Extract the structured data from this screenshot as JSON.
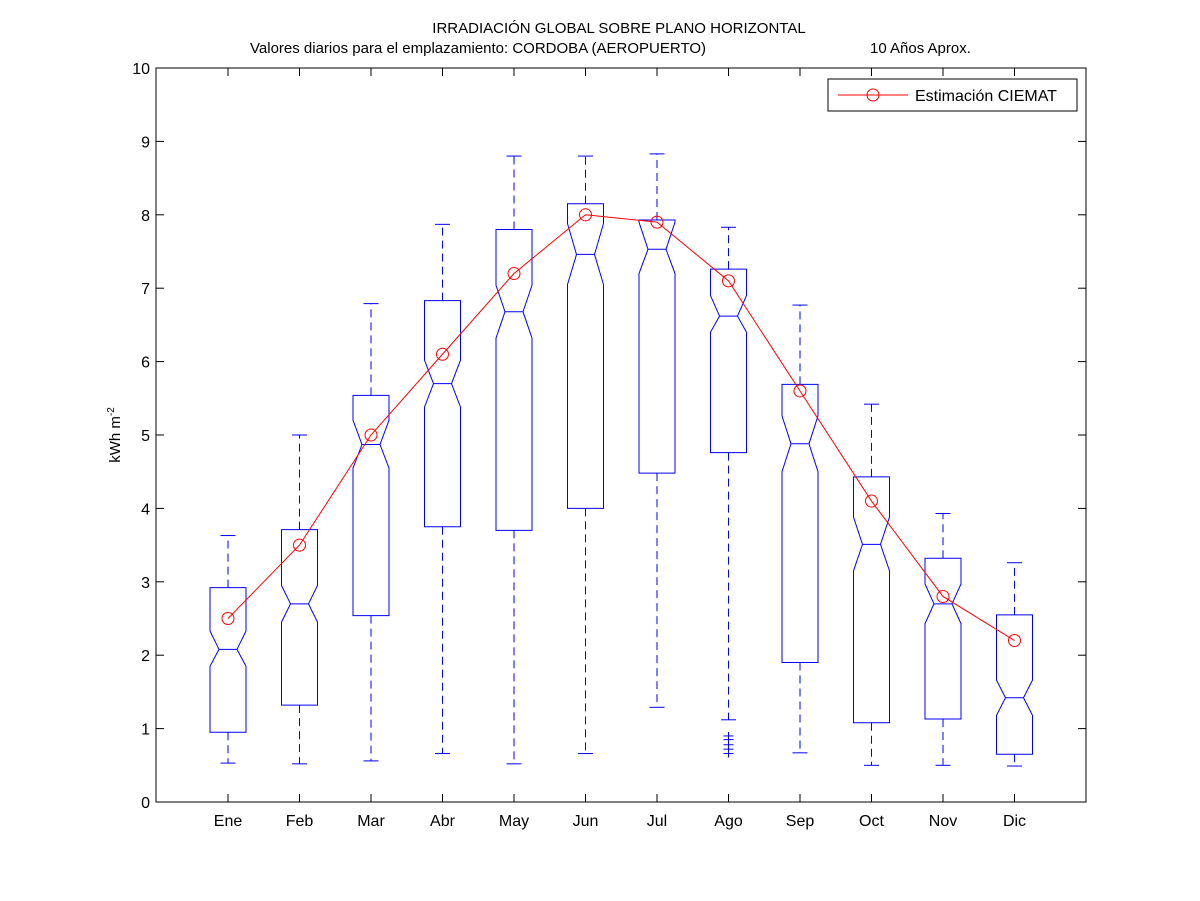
{
  "chart_data": {
    "type": "box",
    "title": "IRRADIACIÓN GLOBAL SOBRE PLANO HORIZONTAL",
    "subtitle_left": "Valores diarios para el emplazamiento:  CORDOBA (AEROPUERTO)",
    "subtitle_right": "10 Años Aprox.",
    "ylabel": "kWh m",
    "ylabel_sup": "-2",
    "ylim": [
      0,
      10
    ],
    "yticks": [
      "0",
      "1",
      "2",
      "3",
      "4",
      "5",
      "6",
      "7",
      "8",
      "9",
      "10"
    ],
    "grid": false,
    "legend_position": "top-right",
    "categories": [
      "Ene",
      "Feb",
      "Mar",
      "Abr",
      "May",
      "Jun",
      "Jul",
      "Ago",
      "Sep",
      "Oct",
      "Nov",
      "Dic"
    ],
    "boxes": [
      {
        "min": 0.53,
        "q1": 0.95,
        "median": 2.08,
        "q3": 2.92,
        "max": 3.63,
        "notch_lo": 1.85,
        "notch_hi": 2.33,
        "outliers": []
      },
      {
        "min": 0.52,
        "q1": 1.32,
        "median": 2.7,
        "q3": 3.71,
        "max": 5.0,
        "notch_lo": 2.45,
        "notch_hi": 2.95,
        "outliers": []
      },
      {
        "min": 0.56,
        "q1": 2.54,
        "median": 4.87,
        "q3": 5.54,
        "max": 6.79,
        "notch_lo": 4.55,
        "notch_hi": 5.2,
        "outliers": []
      },
      {
        "min": 0.66,
        "q1": 3.75,
        "median": 5.7,
        "q3": 6.83,
        "max": 7.87,
        "notch_lo": 5.38,
        "notch_hi": 6.02,
        "outliers": []
      },
      {
        "min": 0.52,
        "q1": 3.7,
        "median": 6.68,
        "q3": 7.8,
        "max": 8.8,
        "notch_lo": 6.32,
        "notch_hi": 7.04,
        "outliers": []
      },
      {
        "min": 0.66,
        "q1": 4.0,
        "median": 7.46,
        "q3": 8.15,
        "max": 8.8,
        "notch_lo": 7.05,
        "notch_hi": 7.88,
        "outliers": []
      },
      {
        "min": 1.29,
        "q1": 4.48,
        "median": 7.53,
        "q3": 7.93,
        "max": 8.83,
        "notch_lo": 7.2,
        "notch_hi": 7.9,
        "outliers": []
      },
      {
        "min": 1.12,
        "q1": 4.76,
        "median": 6.62,
        "q3": 7.26,
        "max": 7.83,
        "notch_lo": 6.4,
        "notch_hi": 6.9,
        "outliers": [
          0.9,
          0.85,
          0.78,
          0.72,
          0.66
        ]
      },
      {
        "min": 0.67,
        "q1": 1.9,
        "median": 4.88,
        "q3": 5.69,
        "max": 6.77,
        "notch_lo": 4.5,
        "notch_hi": 5.26,
        "outliers": []
      },
      {
        "min": 0.5,
        "q1": 1.08,
        "median": 3.51,
        "q3": 4.43,
        "max": 5.42,
        "notch_lo": 3.15,
        "notch_hi": 3.88,
        "outliers": []
      },
      {
        "min": 0.5,
        "q1": 1.13,
        "median": 2.7,
        "q3": 3.32,
        "max": 3.93,
        "notch_lo": 2.43,
        "notch_hi": 2.97,
        "outliers": []
      },
      {
        "min": 0.49,
        "q1": 0.65,
        "median": 1.42,
        "q3": 2.55,
        "max": 3.26,
        "notch_lo": 1.18,
        "notch_hi": 1.66,
        "outliers": []
      }
    ],
    "series": [
      {
        "name": "Estimación CIEMAT",
        "values": [
          2.5,
          3.5,
          5.0,
          6.1,
          7.2,
          8.0,
          7.9,
          7.1,
          5.6,
          4.1,
          2.8,
          2.2
        ],
        "color": "#ff0000",
        "marker": "circle"
      }
    ],
    "colors": {
      "box": "#0000ff",
      "series": "#ff0000",
      "axis": "#000000"
    }
  }
}
